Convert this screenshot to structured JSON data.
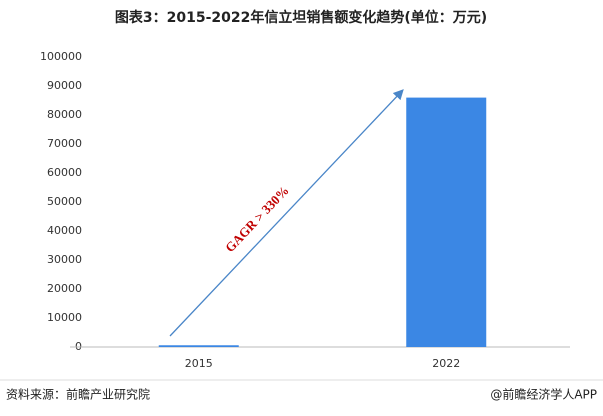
{
  "chart_data": {
    "type": "bar",
    "title": "图表3：2015-2022年信立坦销售额变化趋势(单位：万元)",
    "categories": [
      "2015",
      "2022"
    ],
    "values": [
      600,
      86000
    ],
    "color": "#3b87e4",
    "ylim": [
      0,
      100000
    ],
    "yticks": [
      0,
      10000,
      20000,
      30000,
      40000,
      50000,
      60000,
      70000,
      80000,
      90000,
      100000
    ],
    "annotation": "GAGR > 330%"
  },
  "footer": {
    "source": "资料来源：前瞻产业研究院",
    "brand": "@前瞻经济学人APP"
  }
}
